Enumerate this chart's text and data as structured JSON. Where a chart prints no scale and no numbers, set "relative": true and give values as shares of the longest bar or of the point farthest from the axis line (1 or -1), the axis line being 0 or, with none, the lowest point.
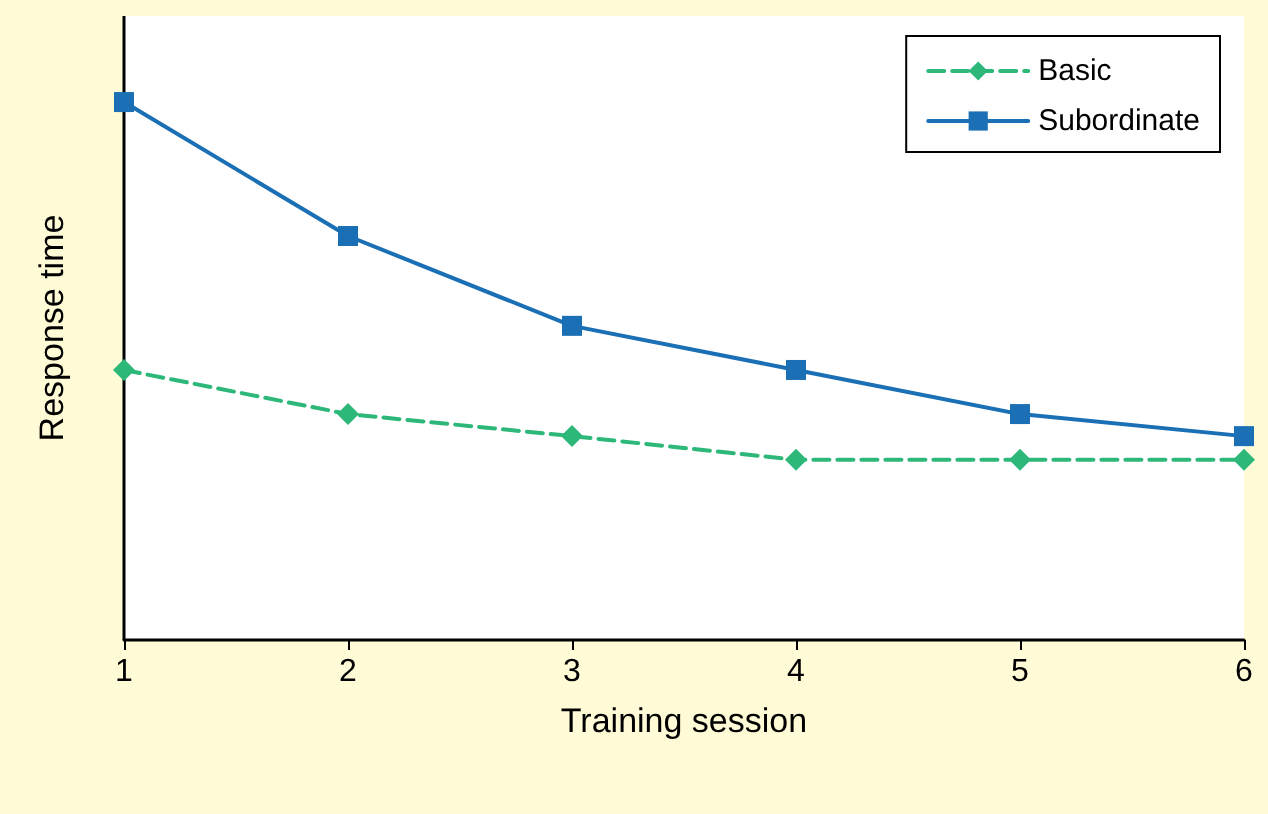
{
  "chart_data": {
    "type": "line",
    "relative": true,
    "xlabel": "Training session",
    "ylabel": "Response time",
    "x": [
      1,
      2,
      3,
      4,
      5,
      6
    ],
    "xlim": [
      1,
      6
    ],
    "xticks": [
      1,
      2,
      3,
      4,
      5,
      6
    ],
    "legend": "top right",
    "grid": false,
    "series": [
      {
        "name": "Basic",
        "color": "#2db87a",
        "marker": "diamond",
        "line_style": "dashed",
        "values": [
          0.502,
          0.42,
          0.379,
          0.335,
          0.335,
          0.335
        ]
      },
      {
        "name": "Subordinate",
        "color": "#1a6fb5",
        "marker": "square",
        "line_style": "solid",
        "values": [
          1,
          0.751,
          0.584,
          0.502,
          0.42,
          0.379
        ]
      }
    ]
  }
}
